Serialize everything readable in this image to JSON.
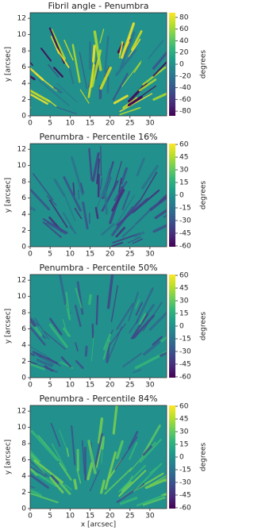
{
  "chart_data": [
    {
      "type": "heatmap",
      "title": "Fibril angle - Penumbra",
      "ylabel": "y [arcsec]",
      "xlim": [
        0,
        34.2
      ],
      "ylim": [
        0,
        12.7
      ],
      "xticks": [
        0,
        5,
        10,
        15,
        20,
        25,
        30
      ],
      "yticks": [
        0,
        2,
        4,
        6,
        8,
        10,
        12
      ],
      "colorbar": {
        "label": "degrees",
        "colormap": "viridis",
        "clim": [
          -88,
          88
        ],
        "ticks": [
          80,
          60,
          40,
          20,
          0,
          -20,
          -40,
          -60,
          -80
        ]
      }
    },
    {
      "type": "heatmap",
      "title": "Penumbra - Percentile 16%",
      "ylabel": "y [arcsec]",
      "xlim": [
        0,
        34.2
      ],
      "ylim": [
        0,
        12.7
      ],
      "xticks": [
        0,
        5,
        10,
        15,
        20,
        25,
        30
      ],
      "yticks": [
        0,
        2,
        4,
        6,
        8,
        10,
        12
      ],
      "colorbar": {
        "label": "degrees",
        "colormap": "viridis",
        "clim": [
          -61,
          61
        ],
        "ticks": [
          60,
          45,
          30,
          15,
          0,
          -15,
          -30,
          -45,
          -60
        ]
      }
    },
    {
      "type": "heatmap",
      "title": "Penumbra - Percentile 50%",
      "ylabel": "y [arcsec]",
      "xlim": [
        0,
        34.2
      ],
      "ylim": [
        0,
        12.7
      ],
      "xticks": [
        0,
        5,
        10,
        15,
        20,
        25,
        30
      ],
      "yticks": [
        0,
        2,
        4,
        6,
        8,
        10,
        12
      ],
      "colorbar": {
        "label": "degrees",
        "colormap": "viridis",
        "clim": [
          -61,
          61
        ],
        "ticks": [
          60,
          45,
          30,
          15,
          0,
          -15,
          -30,
          -45,
          -60
        ]
      }
    },
    {
      "type": "heatmap",
      "title": "Penumbra - Percentile 84%",
      "ylabel": "y [arcsec]",
      "xlabel": "x [arcsec]",
      "xlim": [
        0,
        34.2
      ],
      "ylim": [
        0,
        12.7
      ],
      "xticks": [
        0,
        5,
        10,
        15,
        20,
        25,
        30
      ],
      "yticks": [
        0,
        2,
        4,
        6,
        8,
        10,
        12
      ],
      "colorbar": {
        "label": "degrees",
        "colormap": "viridis",
        "clim": [
          -61,
          61
        ],
        "ticks": [
          60,
          45,
          30,
          15,
          0,
          -15,
          -30,
          -45,
          -60
        ]
      }
    }
  ]
}
